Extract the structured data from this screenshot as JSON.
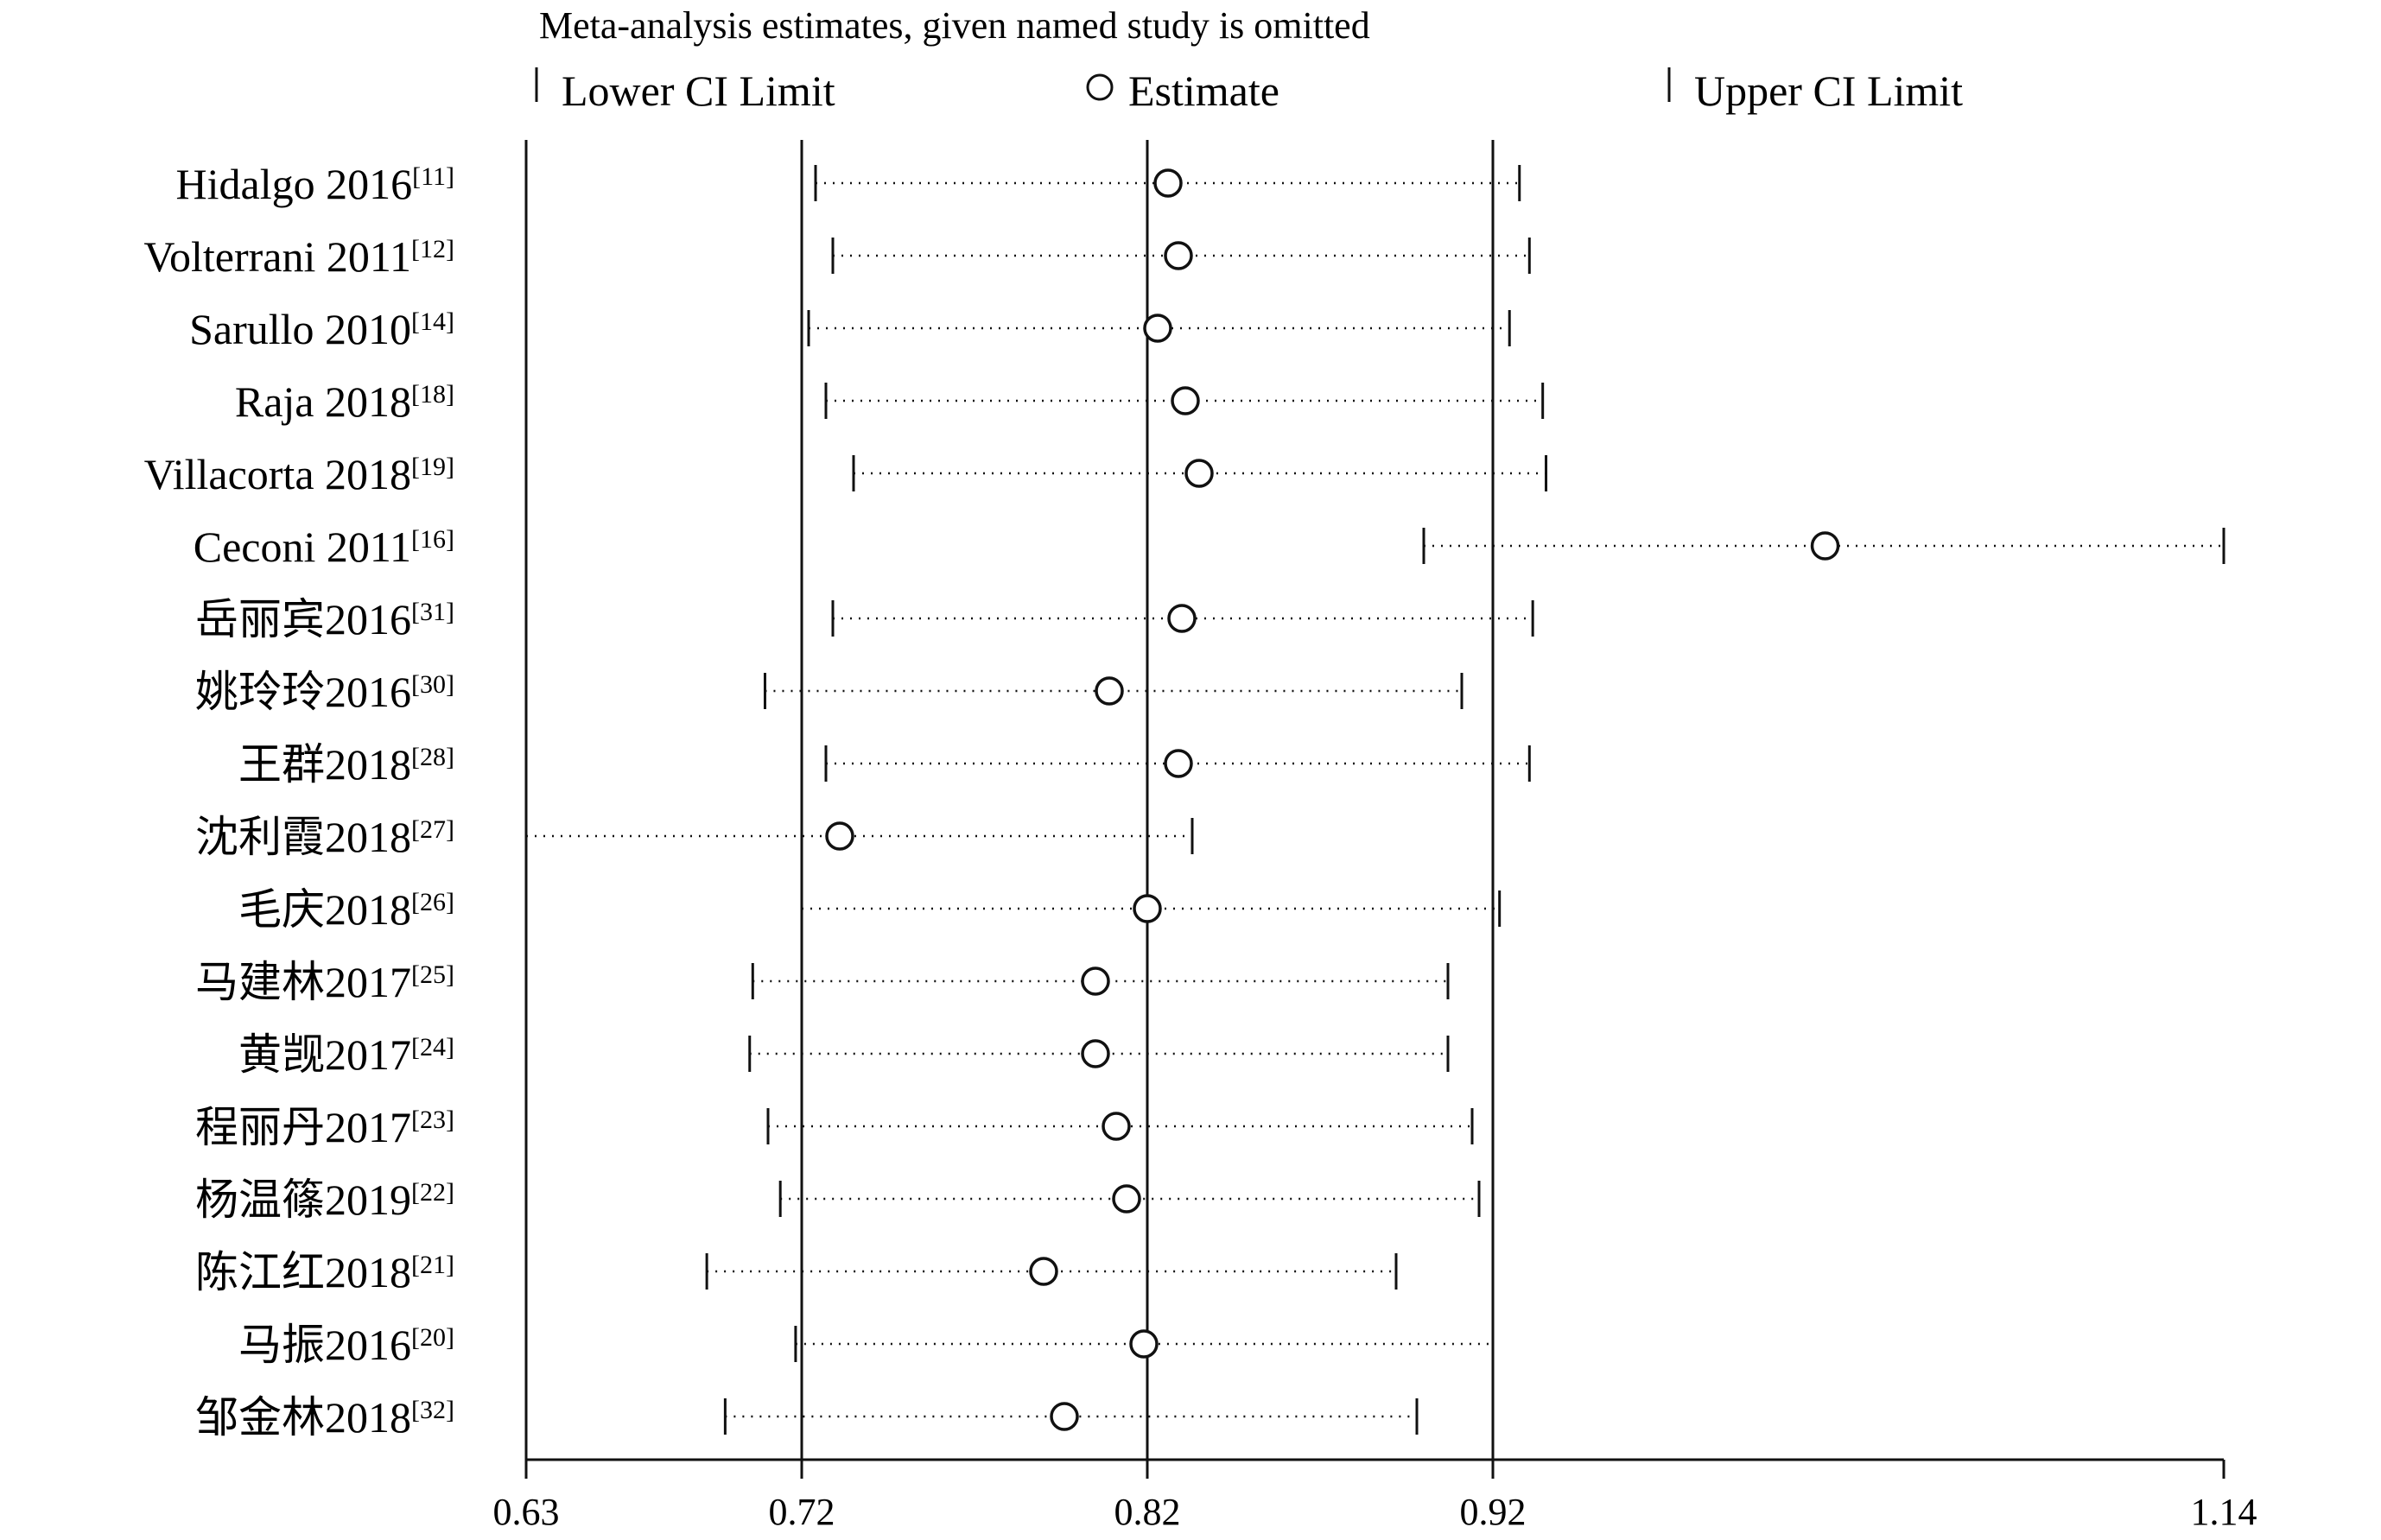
{
  "chart_data": {
    "type": "scatter",
    "title": "Meta-analysis estimates, given named study is omitted",
    "legend": {
      "placement": "top",
      "entries": [
        {
          "symbol": "tick",
          "label": "Lower CI Limit"
        },
        {
          "symbol": "circle",
          "label": "Estimate"
        },
        {
          "symbol": "tick",
          "label": "Upper CI Limit"
        }
      ]
    },
    "xlim": [
      0.63,
      1.14
    ],
    "xticks": [
      0.63,
      0.72,
      0.82,
      0.92,
      1.14
    ],
    "xtick_labels": [
      "0.63",
      "0.72",
      "0.82",
      "0.92",
      "1.14"
    ],
    "reference_lines": [
      0.72,
      0.82,
      0.92
    ],
    "grid": false,
    "studies": [
      {
        "name": "Hidalgo 2016",
        "ref": "[11]",
        "lower": 0.724,
        "estimate": 0.826,
        "upper": 0.928
      },
      {
        "name": "Volterrani 2011",
        "ref": "[12]",
        "lower": 0.729,
        "estimate": 0.829,
        "upper": 0.931
      },
      {
        "name": "Sarullo 2010",
        "ref": "[14]",
        "lower": 0.722,
        "estimate": 0.823,
        "upper": 0.925
      },
      {
        "name": "Raja 2018",
        "ref": "[18]",
        "lower": 0.727,
        "estimate": 0.831,
        "upper": 0.935
      },
      {
        "name": "Villacorta 2018",
        "ref": "[19]",
        "lower": 0.735,
        "estimate": 0.835,
        "upper": 0.936
      },
      {
        "name": "Ceconi 2011",
        "ref": "[16]",
        "lower": 0.9,
        "estimate": 1.02,
        "upper": 1.14
      },
      {
        "name": "岳丽宾2016",
        "ref": "[31]",
        "lower": 0.729,
        "estimate": 0.83,
        "upper": 0.932
      },
      {
        "name": "姚玲玲2016",
        "ref": "[30]",
        "lower": 0.708,
        "estimate": 0.809,
        "upper": 0.911
      },
      {
        "name": "王群2018",
        "ref": "[28]",
        "lower": 0.727,
        "estimate": 0.829,
        "upper": 0.931
      },
      {
        "name": "沈利霞2018",
        "ref": "[27]",
        "lower": 0.63,
        "estimate": 0.731,
        "upper": 0.833
      },
      {
        "name": "毛庆2018",
        "ref": "[26]",
        "lower": 0.72,
        "estimate": 0.82,
        "upper": 0.922
      },
      {
        "name": "马建林2017",
        "ref": "[25]",
        "lower": 0.704,
        "estimate": 0.805,
        "upper": 0.907
      },
      {
        "name": "黄觊2017",
        "ref": "[24]",
        "lower": 0.703,
        "estimate": 0.805,
        "upper": 0.907
      },
      {
        "name": "程丽丹2017",
        "ref": "[23]",
        "lower": 0.709,
        "estimate": 0.811,
        "upper": 0.914
      },
      {
        "name": "杨温篠2019",
        "ref": "[22]",
        "lower": 0.713,
        "estimate": 0.814,
        "upper": 0.916
      },
      {
        "name": "陈江红2018",
        "ref": "[21]",
        "lower": 0.689,
        "estimate": 0.79,
        "upper": 0.892
      },
      {
        "name": "马振2016",
        "ref": "[20]",
        "lower": 0.718,
        "estimate": 0.819,
        "upper": 0.92
      },
      {
        "name": "邹金林2018",
        "ref": "[32]",
        "lower": 0.695,
        "estimate": 0.796,
        "upper": 0.898
      }
    ]
  }
}
